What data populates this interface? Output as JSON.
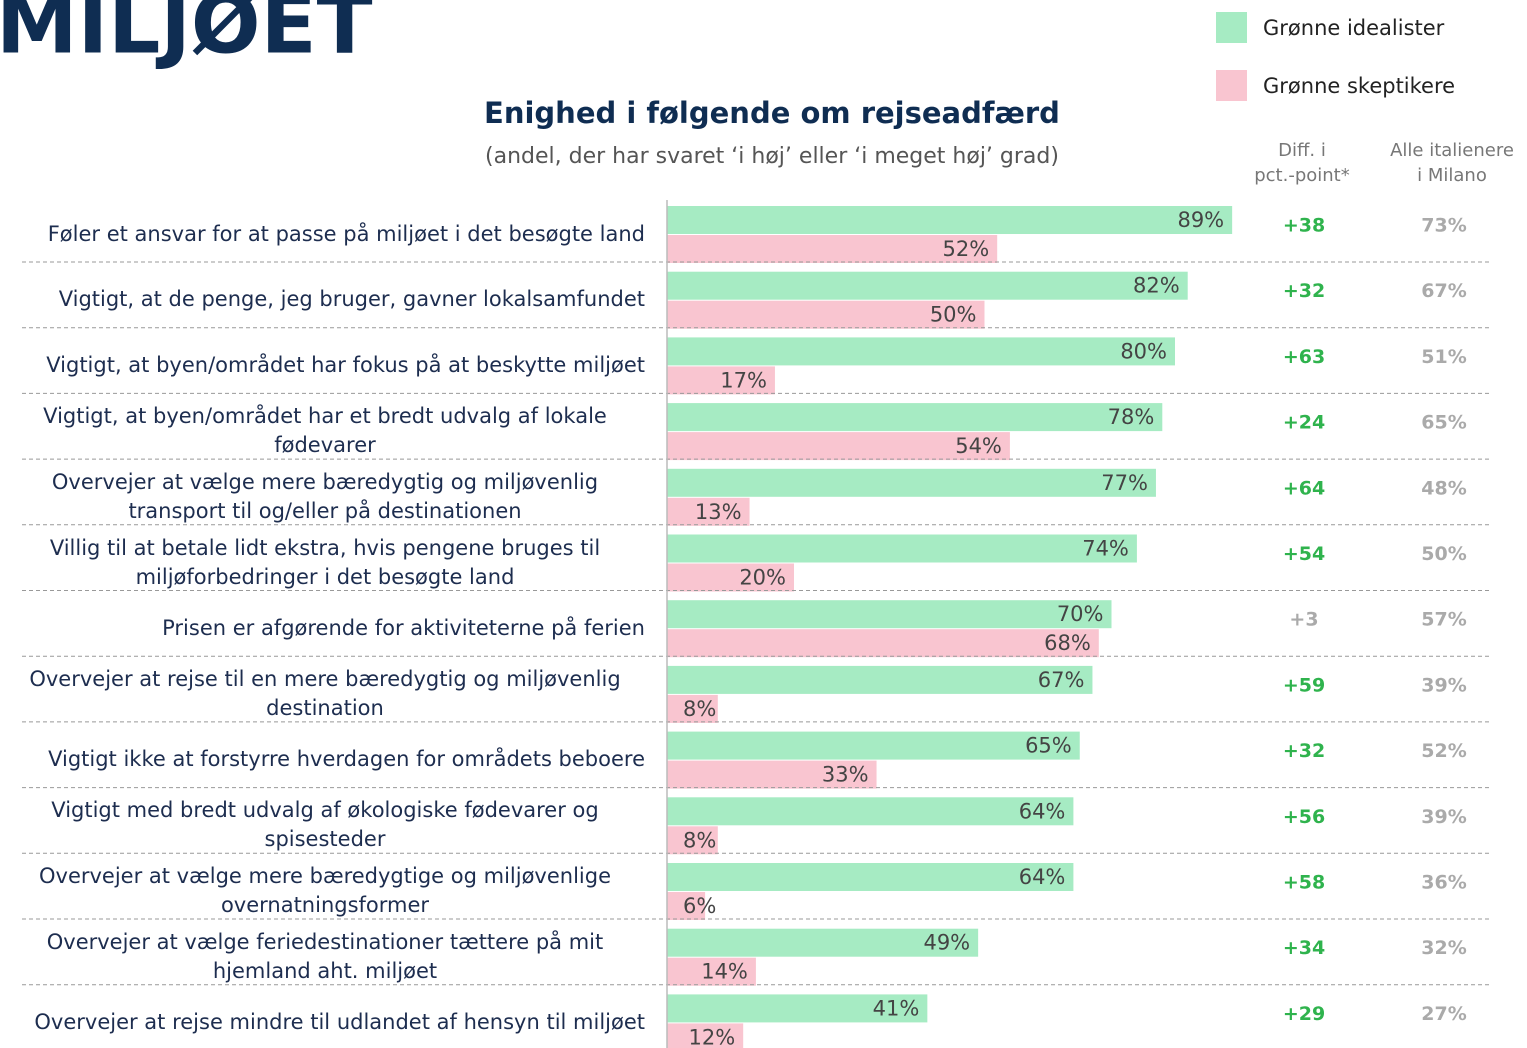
{
  "page_title": "MILJØET",
  "chart_data": {
    "type": "bar",
    "orientation": "horizontal",
    "title": "Enighed i følgende om rejseadfærd",
    "subtitle": "(andel, der har svaret ‘i høj’ eller ‘i meget høj’ grad)",
    "categories": [
      "Føler et ansvar for at passe på miljøet i det besøgte land",
      "Vigtigt, at de penge, jeg bruger, gavner lokalsamfundet",
      "Vigtigt, at byen/området har fokus på at beskytte miljøet",
      "Vigtigt, at byen/området har et bredt udvalg af lokale fødevarer",
      "Overvejer at vælge mere bæredygtig og miljøvenlig transport til og/eller på destinationen",
      "Villig til at betale lidt ekstra, hvis pengene bruges til miljøforbedringer i det besøgte land",
      "Prisen er afgørende for aktiviteterne på ferien",
      "Overvejer at rejse til en mere bæredygtig og miljøvenlig destination",
      "Vigtigt ikke at forstyrre hverdagen for områdets beboere",
      "Vigtigt med bredt udvalg af økologiske fødevarer og spisesteder",
      "Overvejer at vælge mere bæredygtige og miljøvenlige overnatningsformer",
      "Overvejer at vælge feriedestinationer tættere på mit hjemland aht. miljøet",
      "Overvejer at rejse mindre til udlandet af hensyn til miljøet"
    ],
    "series": [
      {
        "name": "Grønne idealister",
        "color": "#a6ebc3",
        "values": [
          89,
          82,
          80,
          78,
          77,
          74,
          70,
          67,
          65,
          64,
          64,
          49,
          41
        ],
        "value_labels": [
          "89%",
          "82%",
          "80%",
          "78%",
          "77%",
          "74%",
          "70%",
          "67%",
          "65%",
          "64%",
          "64%",
          "49%",
          "41%"
        ]
      },
      {
        "name": "Grønne skeptikere",
        "color": "#f9c5d0",
        "values": [
          52,
          50,
          17,
          54,
          13,
          20,
          68,
          8,
          33,
          8,
          6,
          14,
          12
        ],
        "value_labels": [
          "52%",
          "50%",
          "17%",
          "54%",
          "13%",
          "20%",
          "68%",
          "8%",
          "33%",
          "8%",
          "6%",
          "14%",
          "12%"
        ]
      }
    ],
    "columns": [
      {
        "name": "Diff. i\npct.-point*",
        "values": [
          38,
          32,
          63,
          24,
          64,
          54,
          3,
          59,
          32,
          56,
          58,
          34,
          29
        ],
        "value_labels": [
          "+38",
          "+32",
          "+63",
          "+24",
          "+64",
          "+54",
          "+3",
          "+59",
          "+32",
          "+56",
          "+58",
          "+34",
          "+29"
        ],
        "value_colors": [
          "#2fb34d",
          "#2fb34d",
          "#2fb34d",
          "#2fb34d",
          "#2fb34d",
          "#2fb34d",
          "#aaaaaa",
          "#2fb34d",
          "#2fb34d",
          "#2fb34d",
          "#2fb34d",
          "#2fb34d",
          "#2fb34d"
        ]
      },
      {
        "name": "Alle italienere\ni Milano",
        "values": [
          73,
          67,
          51,
          65,
          48,
          50,
          57,
          39,
          52,
          39,
          36,
          32,
          27
        ],
        "value_labels": [
          "73%",
          "67%",
          "51%",
          "65%",
          "48%",
          "50%",
          "57%",
          "39%",
          "52%",
          "39%",
          "36%",
          "32%",
          "27%"
        ],
        "color": "#aaaaaa"
      }
    ],
    "xlim": [
      0,
      100
    ],
    "legend": "top-right"
  }
}
